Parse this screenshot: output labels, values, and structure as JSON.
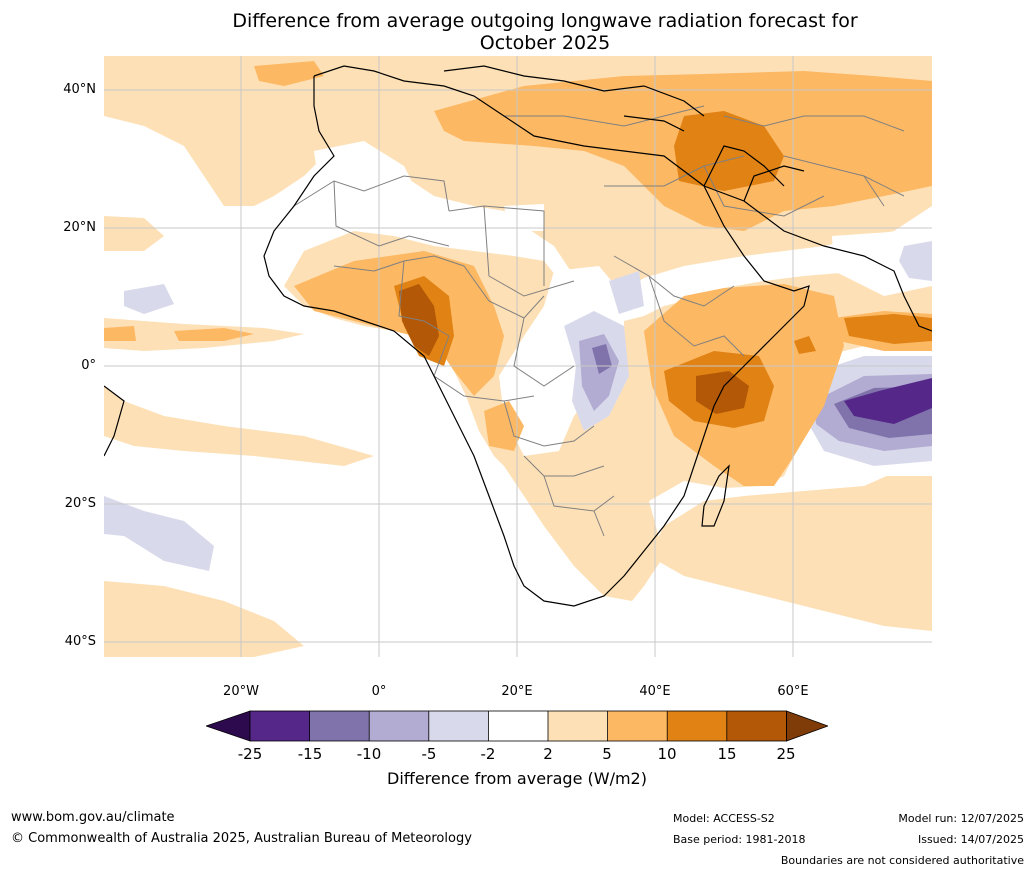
{
  "title_line1": "Difference from average outgoing longwave radiation forecast for",
  "title_line2": "October 2025",
  "axes": {
    "lat_ticks": [
      "40°N",
      "20°N",
      "0°",
      "20°S",
      "40°S"
    ],
    "lon_ticks": [
      "20°W",
      "0°",
      "20°E",
      "40°E",
      "60°E"
    ]
  },
  "colorbar": {
    "ticks": [
      "-25",
      "-15",
      "-10",
      "-5",
      "-2",
      "2",
      "5",
      "10",
      "15",
      "25"
    ],
    "label": "Difference from average (W/m2)",
    "colors": {
      "below_-25": "#2d0a4e",
      "-25_-15": "#542788",
      "-15_-10": "#8073ac",
      "-10_-5": "#b2abd2",
      "-5_-2": "#d8daeb",
      "-2_2": "#ffffff",
      "2_5": "#fee0b6",
      "5_10": "#fdb863",
      "10_15": "#e08214",
      "15_25": "#b35806",
      "above_25": "#7f3b08"
    }
  },
  "footer": {
    "website": "www.bom.gov.au/climate",
    "copyright": "© Commonwealth of Australia 2025, Australian Bureau of Meteorology",
    "model": "Model: ACCESS-S2",
    "base_period": "Base period: 1981-2018",
    "model_run": "Model run: 12/07/2025",
    "issued": "Issued: 14/07/2025",
    "disclaimer": "Boundaries are not considered authoritative"
  }
}
